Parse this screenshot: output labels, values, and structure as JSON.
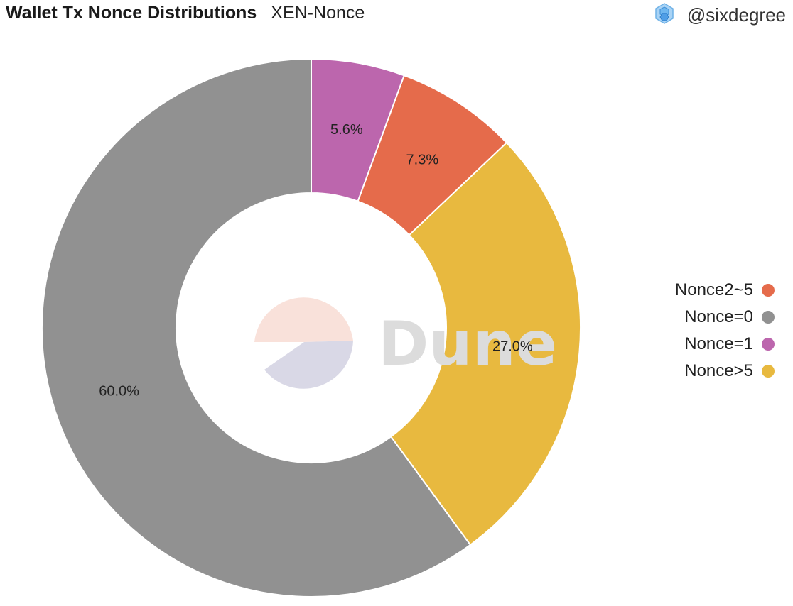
{
  "header": {
    "title": "Wallet Tx Nonce Distributions",
    "subtitle": "XEN-Nonce"
  },
  "author": {
    "name": "@sixdegree",
    "icon": "hexagon-cluster-icon"
  },
  "watermark": {
    "text": "Dune"
  },
  "chart_data": {
    "type": "pie",
    "donut": true,
    "start": "top",
    "direction": "counterclockwise",
    "slices": [
      {
        "label": "Nonce=0",
        "value": 60.0,
        "value_label": "60.0%",
        "color": "#919191"
      },
      {
        "label": "Nonce>5",
        "value": 27.0,
        "value_label": "27.0%",
        "color": "#e8b93f"
      },
      {
        "label": "Nonce2~5",
        "value": 7.3,
        "value_label": "7.3%",
        "color": "#e56b4b"
      },
      {
        "label": "Nonce=1",
        "value": 5.6,
        "value_label": "5.6%",
        "color": "#bc66ad"
      }
    ],
    "legend": {
      "placement": "right",
      "items": [
        {
          "label": "Nonce2~5",
          "color": "#e56b4b"
        },
        {
          "label": "Nonce=0",
          "color": "#919191"
        },
        {
          "label": "Nonce=1",
          "color": "#bc66ad"
        },
        {
          "label": "Nonce>5",
          "color": "#e8b93f"
        }
      ]
    }
  }
}
